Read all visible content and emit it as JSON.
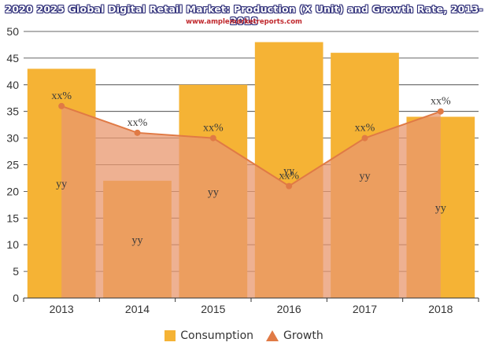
{
  "header": {
    "title": "2020 2025 Global Digital Retail Market: Production (X Unit) and Growth Rate, 2013-2018",
    "subtitle": "www.amplemarketreports.com"
  },
  "colors": {
    "consumption": "#f5b335",
    "growth_fill": "#e8976e",
    "growth_line": "#e07a45",
    "grid": "#333333"
  },
  "chart_data": {
    "type": "bar",
    "categories": [
      "2013",
      "2014",
      "2015",
      "2016",
      "2017",
      "2018"
    ],
    "ylim": [
      0,
      50
    ],
    "yticks": [
      0,
      5,
      10,
      15,
      20,
      25,
      30,
      35,
      40,
      45,
      50
    ],
    "grid": true,
    "legend_position": "bottom",
    "series": [
      {
        "name": "Consumption",
        "type": "bar",
        "values": [
          43,
          22,
          40,
          48,
          46,
          34
        ],
        "labels": [
          "yy",
          "yy",
          "yy",
          "yy",
          "yy",
          "yy"
        ]
      },
      {
        "name": "Growth",
        "type": "area",
        "values": [
          36,
          31,
          30,
          21,
          30,
          35
        ],
        "labels": [
          "xx%",
          "xx%",
          "xx%",
          "xx%",
          "xx%",
          "xx%"
        ]
      }
    ]
  }
}
